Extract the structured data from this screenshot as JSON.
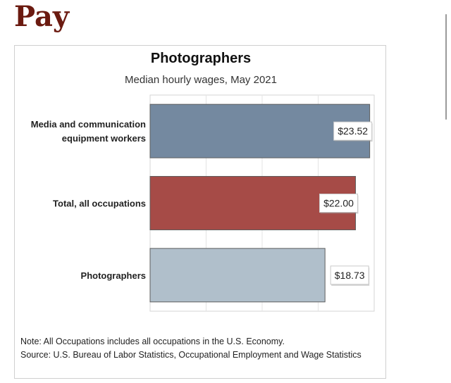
{
  "page": {
    "heading": "Pay"
  },
  "chart_data": {
    "type": "bar",
    "orientation": "horizontal",
    "title": "Photographers",
    "subtitle": "Median hourly wages, May 2021",
    "categories": [
      [
        "Media and communication",
        "equipment workers"
      ],
      [
        "Total, all occupations"
      ],
      [
        "Photographers"
      ]
    ],
    "values": [
      23.52,
      22.0,
      18.73
    ],
    "data_labels": [
      "$23.52",
      "$22.00",
      "$18.73"
    ],
    "colors": [
      "#7489a0",
      "#a64b47",
      "#b0bfcb"
    ],
    "xlim": [
      0,
      24
    ],
    "grid": true,
    "legend": "none"
  },
  "notes": {
    "line1": "Note: All Occupations includes all occupations in the U.S. Economy.",
    "line2": "Source: U.S. Bureau of Labor Statistics, Occupational Employment and Wage Statistics"
  }
}
